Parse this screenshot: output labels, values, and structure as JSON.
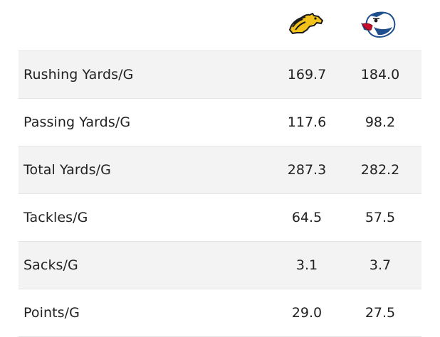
{
  "teams": [
    {
      "icon": "mustang-horse-logo-icon",
      "colors": {
        "primary": "#f2c21b",
        "secondary": "#1b1b1b"
      }
    },
    {
      "icon": "eagle-logo-icon",
      "colors": {
        "primary": "#1f4e8c",
        "secondary": "#c8102e"
      }
    }
  ],
  "stats": [
    {
      "label": "Rushing Yards/G",
      "team_a": "169.7",
      "team_b": "184.0"
    },
    {
      "label": "Passing Yards/G",
      "team_a": "117.6",
      "team_b": "98.2"
    },
    {
      "label": "Total Yards/G",
      "team_a": "287.3",
      "team_b": "282.2"
    },
    {
      "label": "Tackles/G",
      "team_a": "64.5",
      "team_b": "57.5"
    },
    {
      "label": "Sacks/G",
      "team_a": "3.1",
      "team_b": "3.7"
    },
    {
      "label": "Points/G",
      "team_a": "29.0",
      "team_b": "27.5"
    }
  ],
  "colors": {
    "row_alt": "#f3f3f3",
    "divider": "#e4e4e4",
    "text": "#222222"
  }
}
